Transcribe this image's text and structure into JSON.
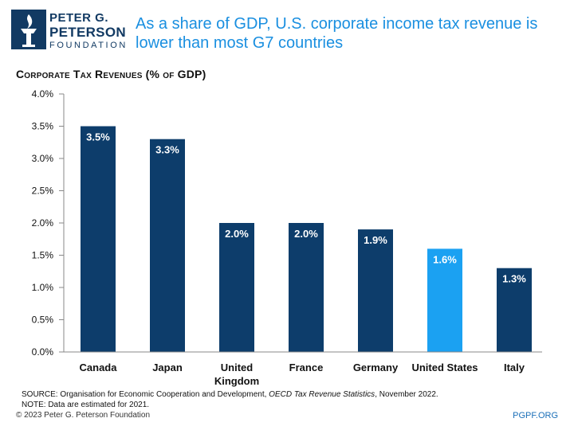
{
  "header": {
    "logo_line1": "PETER G.",
    "logo_line2": "PETERSON",
    "logo_line3": "FOUNDATION",
    "headline": "As a share of GDP, U.S. corporate income tax revenue is lower than most G7 countries"
  },
  "chart_data": {
    "type": "bar",
    "title": "Corporate Tax Revenues (% of GDP)",
    "categories": [
      "Canada",
      "Japan",
      "United Kingdom",
      "France",
      "Germany",
      "United States",
      "Italy"
    ],
    "category_lines": [
      [
        "Canada"
      ],
      [
        "Japan"
      ],
      [
        "United",
        "Kingdom"
      ],
      [
        "France"
      ],
      [
        "Germany"
      ],
      [
        "United States"
      ],
      [
        "Italy"
      ]
    ],
    "values": [
      3.5,
      3.3,
      2.0,
      2.0,
      1.9,
      1.6,
      1.3
    ],
    "value_labels": [
      "3.5%",
      "3.3%",
      "2.0%",
      "2.0%",
      "1.9%",
      "1.6%",
      "1.3%"
    ],
    "highlight_category": "United States",
    "colors": {
      "bar": "#0d3d6b",
      "highlight": "#1ba1f2",
      "label": "#ffffff",
      "axis": "#888888"
    },
    "ylim": [
      0,
      4.0
    ],
    "yticks": [
      0,
      0.5,
      1.0,
      1.5,
      2.0,
      2.5,
      3.0,
      3.5,
      4.0
    ],
    "ytick_labels": [
      "0.0%",
      "0.5%",
      "1.0%",
      "1.5%",
      "2.0%",
      "2.5%",
      "3.0%",
      "3.5%",
      "4.0%"
    ],
    "grid": false
  },
  "footer": {
    "source_prefix": "SOURCE: Organisation for Economic Cooperation and Development, ",
    "source_title": "OECD Tax Revenue Statistics",
    "source_suffix": ", November 2022.",
    "note": "NOTE: Data are estimated for 2021.",
    "copyright": "© 2023 Peter G. Peterson Foundation",
    "site": "PGPF.ORG"
  }
}
